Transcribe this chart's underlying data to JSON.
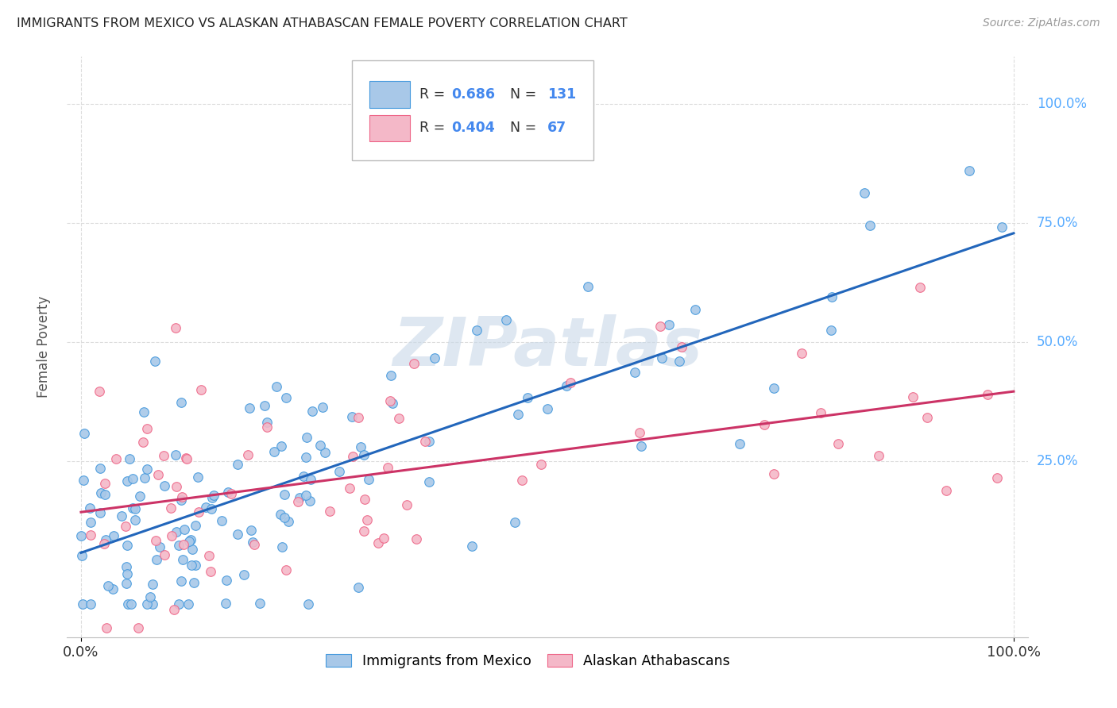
{
  "title": "IMMIGRANTS FROM MEXICO VS ALASKAN ATHABASCAN FEMALE POVERTY CORRELATION CHART",
  "source": "Source: ZipAtlas.com",
  "ylabel": "Female Poverty",
  "legend_label_blue": "Immigrants from Mexico",
  "legend_label_pink": "Alaskan Athabascans",
  "R_blue": 0.686,
  "N_blue": 131,
  "R_pink": 0.404,
  "N_pink": 67,
  "blue_scatter_color": "#a8c8e8",
  "blue_edge_color": "#4499dd",
  "blue_line_color": "#2266bb",
  "pink_scatter_color": "#f4b8c8",
  "pink_edge_color": "#ee6688",
  "pink_line_color": "#cc3366",
  "blue_line_slope": 0.67,
  "blue_line_intercept": 0.05,
  "pink_line_slope": 0.24,
  "pink_line_intercept": 0.12,
  "xlim": [
    -0.015,
    1.015
  ],
  "ylim": [
    -0.12,
    1.1
  ],
  "watermark": "ZIPatlas",
  "watermark_color": "#c8d8e8",
  "grid_color": "#dddddd",
  "title_color": "#222222",
  "source_color": "#999999",
  "ytick_color": "#55aaff",
  "xtick_color": "#333333",
  "ylabel_color": "#555555"
}
